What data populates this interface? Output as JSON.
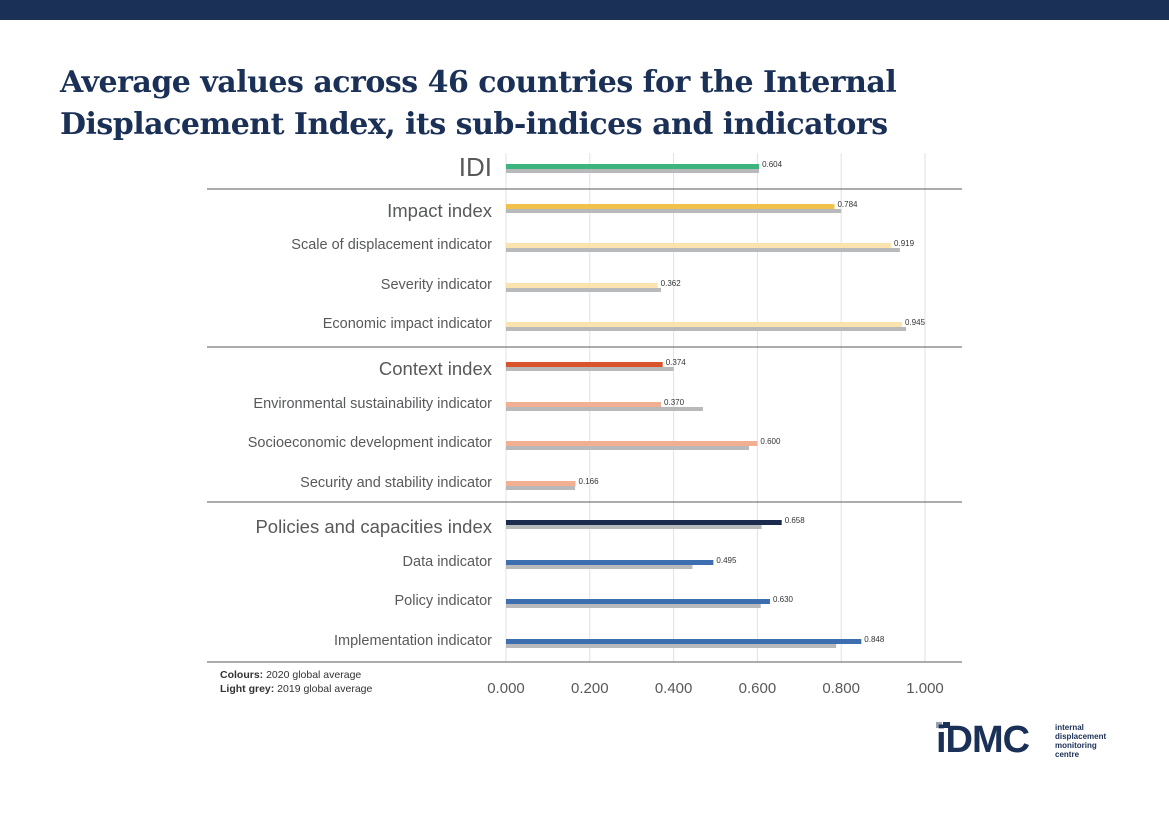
{
  "title": "Average values across 46 countries for the Internal Displacement Index, its sub-indices and indicators",
  "legend": {
    "colours_label": "Colours:",
    "colours_text": "2020 global average",
    "grey_label": "Light grey:",
    "grey_text": "2019 global average"
  },
  "logo": {
    "word": "iDMC",
    "sub_lines": [
      "internal",
      "displacement",
      "monitoring",
      "centre"
    ]
  },
  "chart_data": {
    "type": "bar",
    "orientation": "horizontal",
    "x_ticks": [
      "0.000",
      "0.200",
      "0.400",
      "0.600",
      "0.800",
      "1.000"
    ],
    "xlim": [
      0,
      1
    ],
    "grid": true,
    "series": [
      {
        "name": "2020 global average",
        "values": [
          0.604,
          0.784,
          0.919,
          0.362,
          0.945,
          0.374,
          0.37,
          0.6,
          0.166,
          0.658,
          0.495,
          0.63,
          0.848
        ]
      },
      {
        "name": "2019 global average",
        "values": [
          0.604,
          0.8,
          0.94,
          0.37,
          0.955,
          0.4,
          0.47,
          0.58,
          0.165,
          0.61,
          0.445,
          0.608,
          0.788
        ]
      }
    ],
    "categories": [
      {
        "label": "IDI",
        "level": "top",
        "color": "#3db37e",
        "value_label": "0.604"
      },
      {
        "label": "Impact index",
        "level": "index",
        "color": "#f0c24b",
        "value_label": "0.784"
      },
      {
        "label": "Scale of displacement indicator",
        "level": "indicator",
        "color": "#fbe3b0",
        "value_label": "0.919"
      },
      {
        "label": "Severity indicator",
        "level": "indicator",
        "color": "#fbe3b0",
        "value_label": "0.362"
      },
      {
        "label": "Economic impact indicator",
        "level": "indicator",
        "color": "#fbe3b0",
        "value_label": "0.945"
      },
      {
        "label": "Context index",
        "level": "index",
        "color": "#d9532b",
        "value_label": "0.374"
      },
      {
        "label": "Environmental sustainability indicator",
        "level": "indicator",
        "color": "#f0b091",
        "value_label": "0.370"
      },
      {
        "label": "Socioeconomic development indicator",
        "level": "indicator",
        "color": "#f0b091",
        "value_label": "0.600"
      },
      {
        "label": "Security and stability indicator",
        "level": "indicator",
        "color": "#f0b091",
        "value_label": "0.166"
      },
      {
        "label": "Policies and capacities index",
        "level": "index",
        "color": "#1b2b4d",
        "value_label": "0.658"
      },
      {
        "label": "Data indicator",
        "level": "indicator",
        "color": "#3d6fb0",
        "value_label": "0.495"
      },
      {
        "label": "Policy indicator",
        "level": "indicator",
        "color": "#3d6fb0",
        "value_label": "0.630"
      },
      {
        "label": "Implementation indicator",
        "level": "indicator",
        "color": "#3d6fb0",
        "value_label": "0.848"
      }
    ],
    "grey_color": "#b8b9bb",
    "separators_after": [
      0,
      4,
      8
    ]
  }
}
